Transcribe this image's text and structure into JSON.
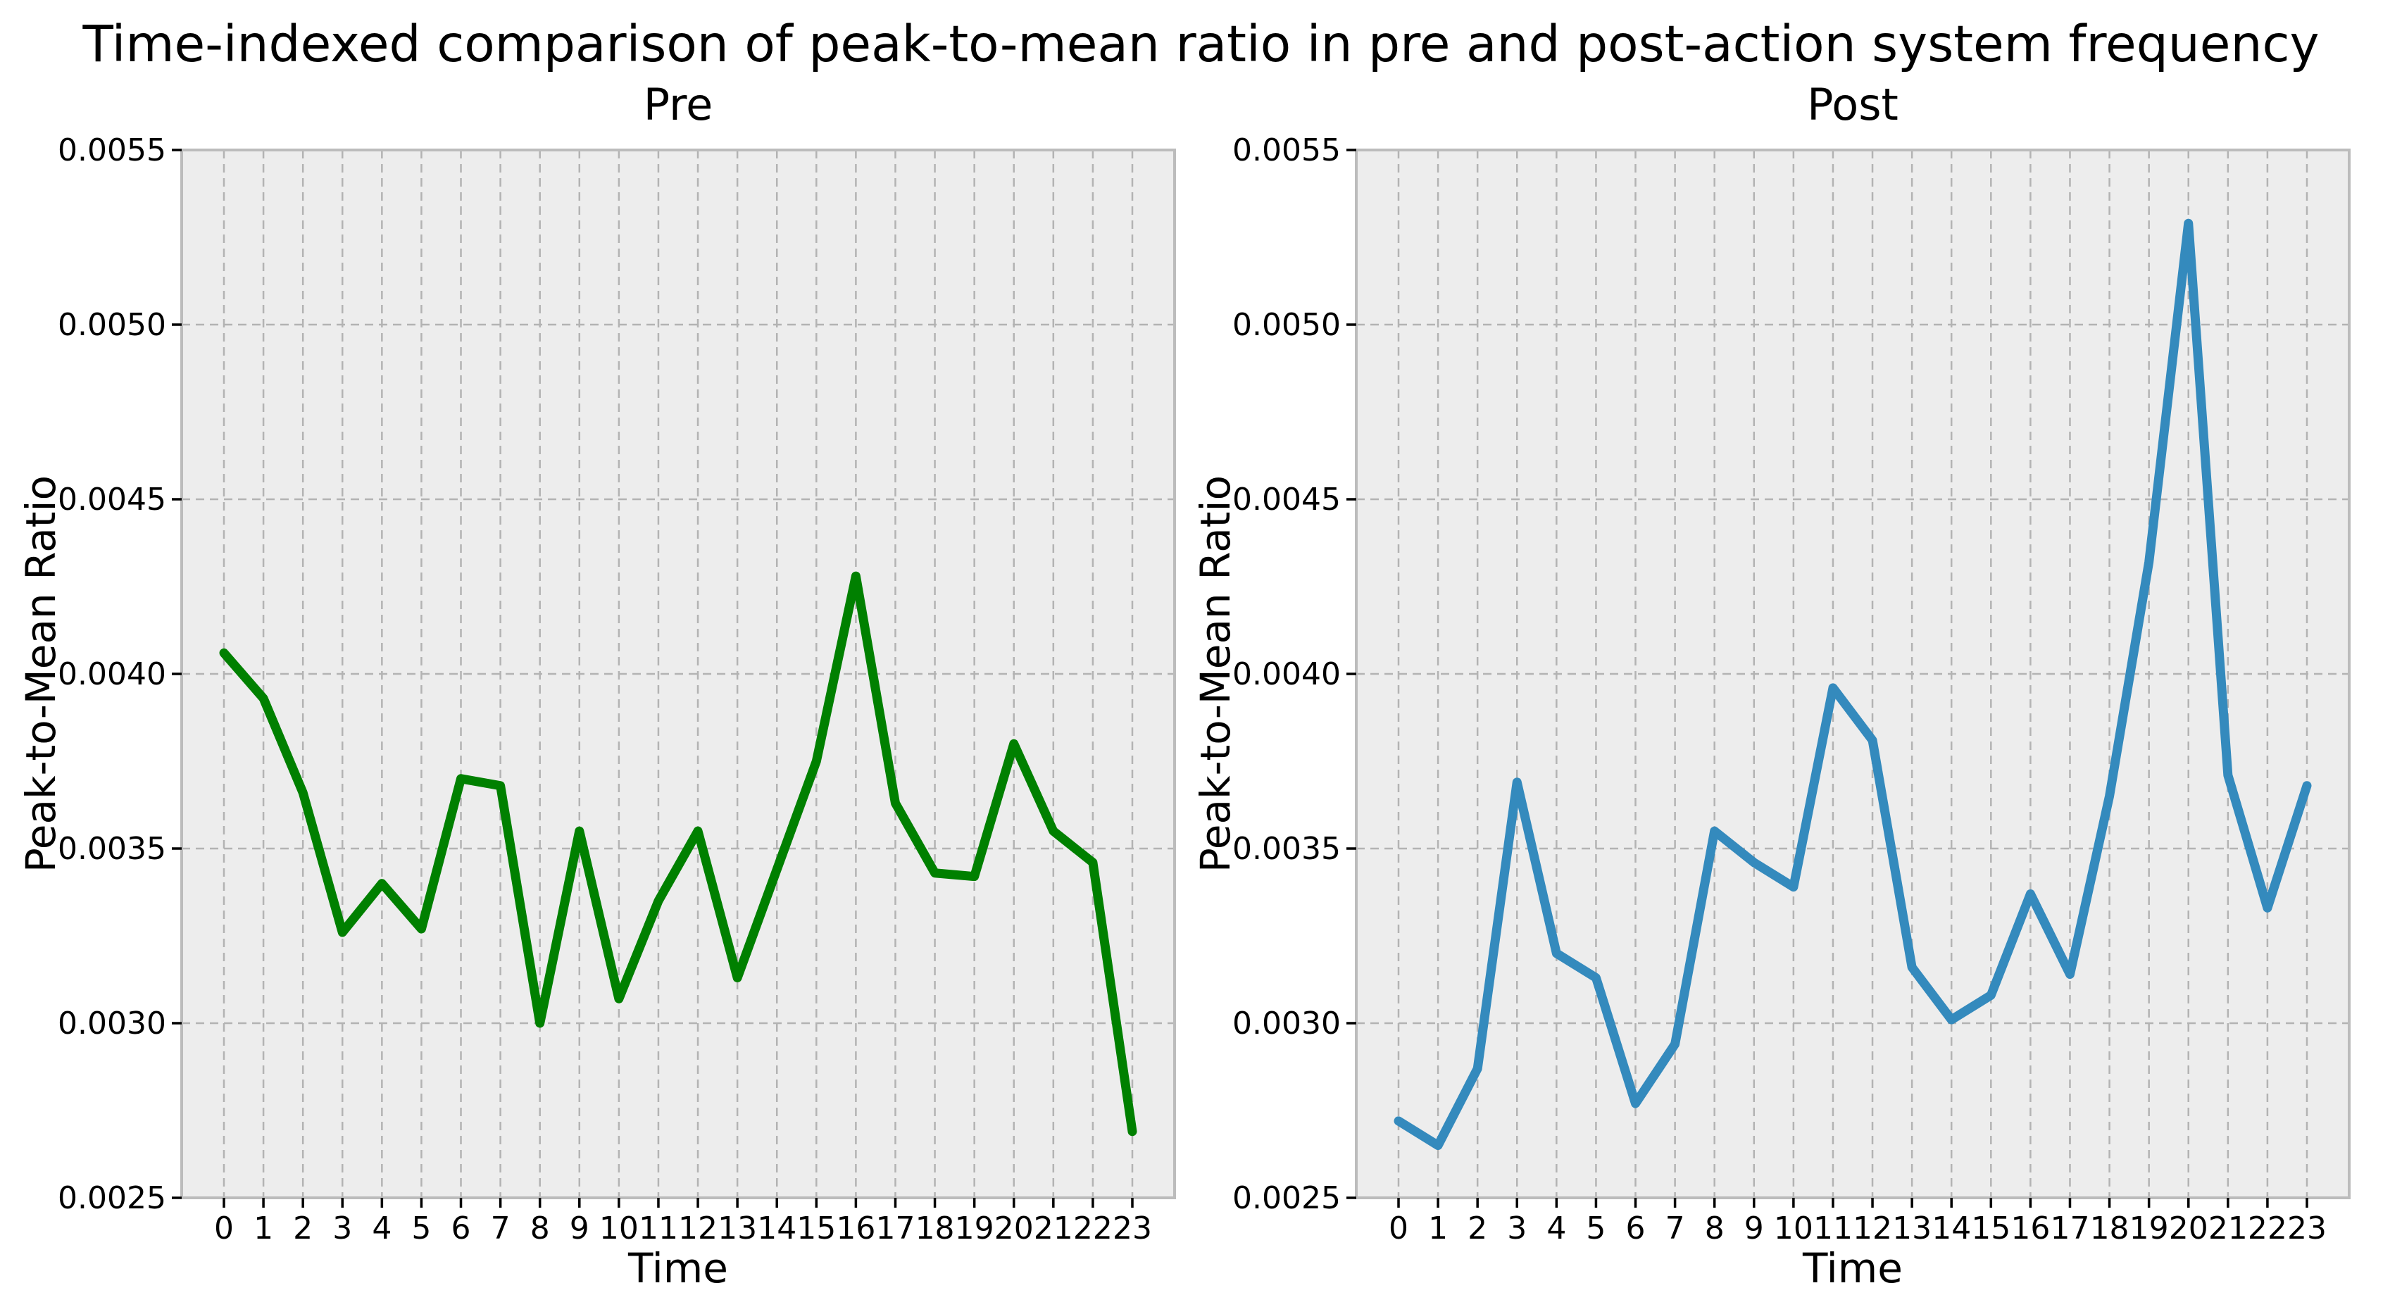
{
  "title": "Time-indexed comparison of peak-to-mean ratio in pre and post-action system frequency",
  "colors": {
    "figure_bg": "#ffffff",
    "axes_bg": "#ededed",
    "grid": "#b3b3b3",
    "spine": "#bcbcbc",
    "tick": "#000000",
    "text": "#000000",
    "pre_line": "#008000",
    "post_line": "#348abd"
  },
  "chart_data": [
    {
      "type": "line",
      "title": "Pre",
      "xlabel": "Time",
      "ylabel": "Peak-to-Mean Ratio",
      "line_color": "#008000",
      "grid": true,
      "legend": "none",
      "ylim": [
        0.0025,
        0.0055
      ],
      "x": [
        0,
        1,
        2,
        3,
        4,
        5,
        6,
        7,
        8,
        9,
        10,
        11,
        12,
        13,
        14,
        15,
        16,
        17,
        18,
        19,
        20,
        21,
        22,
        23
      ],
      "x_tick_labels": [
        "0",
        "1",
        "2",
        "3",
        "4",
        "5",
        "6",
        "7",
        "8",
        "9",
        "10",
        "11",
        "12",
        "13",
        "14",
        "15",
        "16",
        "17",
        "18",
        "19",
        "20",
        "21",
        "22",
        "23"
      ],
      "y_tick_labels": [
        "0.0025",
        "0.0030",
        "0.0035",
        "0.0040",
        "0.0045",
        "0.0050",
        "0.0055"
      ],
      "values": [
        0.00406,
        0.00393,
        0.00366,
        0.00326,
        0.0034,
        0.00327,
        0.0037,
        0.00368,
        0.003,
        0.00355,
        0.00307,
        0.00335,
        0.00355,
        0.00313,
        0.00344,
        0.00375,
        0.00428,
        0.00363,
        0.00343,
        0.00342,
        0.0038,
        0.00355,
        0.00346,
        0.00269
      ]
    },
    {
      "type": "line",
      "title": "Post",
      "xlabel": "Time",
      "ylabel": "Peak-to-Mean Ratio",
      "line_color": "#348abd",
      "grid": true,
      "legend": "none",
      "ylim": [
        0.0025,
        0.0055
      ],
      "x": [
        0,
        1,
        2,
        3,
        4,
        5,
        6,
        7,
        8,
        9,
        10,
        11,
        12,
        13,
        14,
        15,
        16,
        17,
        18,
        19,
        20,
        21,
        22,
        23
      ],
      "x_tick_labels": [
        "0",
        "1",
        "2",
        "3",
        "4",
        "5",
        "6",
        "7",
        "8",
        "9",
        "10",
        "11",
        "12",
        "13",
        "14",
        "15",
        "16",
        "17",
        "18",
        "19",
        "20",
        "21",
        "22",
        "23"
      ],
      "y_tick_labels": [
        "0.0025",
        "0.0030",
        "0.0035",
        "0.0040",
        "0.0045",
        "0.0050",
        "0.0055"
      ],
      "values": [
        0.00272,
        0.00265,
        0.00287,
        0.00369,
        0.0032,
        0.00313,
        0.00277,
        0.00294,
        0.00355,
        0.00346,
        0.00339,
        0.00396,
        0.00381,
        0.00316,
        0.00301,
        0.00308,
        0.00337,
        0.00314,
        0.00365,
        0.00432,
        0.00529,
        0.00371,
        0.00333,
        0.00368
      ]
    }
  ]
}
